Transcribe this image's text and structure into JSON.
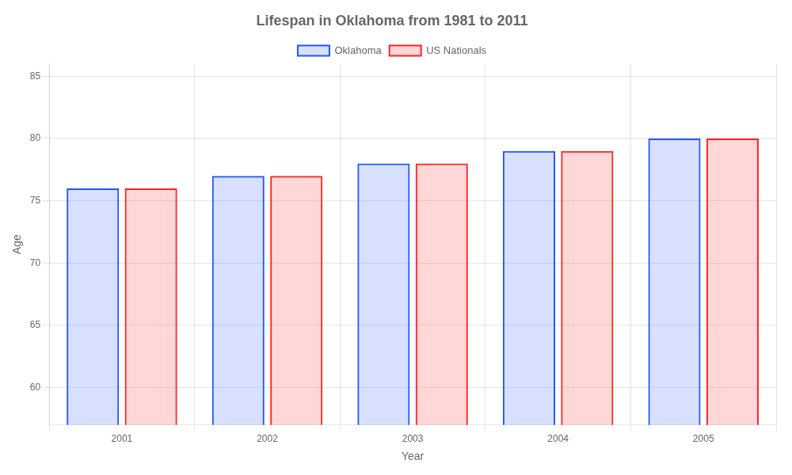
{
  "chart_data": {
    "type": "bar",
    "title": "Lifespan in Oklahoma from 1981 to 2011",
    "x_label": "Year",
    "y_label": "Age",
    "categories": [
      "2001",
      "2002",
      "2003",
      "2004",
      "2005"
    ],
    "series": [
      {
        "name": "Oklahoma",
        "color": "#2255ff",
        "values": [
          76.0,
          77.0,
          78.0,
          79.0,
          80.0
        ]
      },
      {
        "name": "US Nationals",
        "color": "#ff2222",
        "values": [
          76.0,
          77.0,
          78.0,
          79.0,
          80.0
        ]
      }
    ],
    "ylim": [
      57,
      86
    ],
    "yticks": [
      60,
      65,
      70,
      75,
      80,
      85
    ],
    "grid": true,
    "legend": "top"
  }
}
